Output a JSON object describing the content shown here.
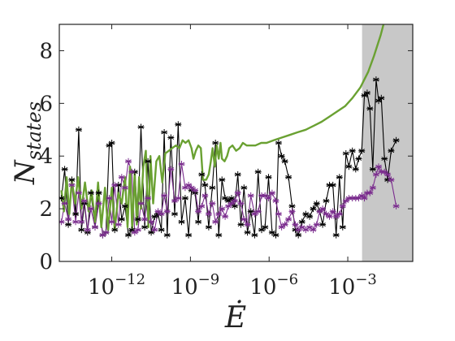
{
  "chart_data": {
    "type": "line",
    "title": "",
    "xlabel": "Ė",
    "ylabel_main": "N",
    "ylabel_sub": "states",
    "x_scale": "log",
    "xlim": [
      1e-14,
      0.3
    ],
    "ylim": [
      0,
      9
    ],
    "x_ticks": [
      {
        "value": 1e-12,
        "base": "10",
        "exp": "−12"
      },
      {
        "value": 1e-09,
        "base": "10",
        "exp": "−9"
      },
      {
        "value": 1e-06,
        "base": "10",
        "exp": "−6"
      },
      {
        "value": 0.001,
        "base": "10",
        "exp": "−3"
      }
    ],
    "y_ticks": [
      0,
      2,
      4,
      6,
      8
    ],
    "shaded_region": {
      "x_from": 0.0035,
      "x_to": 0.3,
      "color": "#c8c8c8"
    },
    "series": [
      {
        "color": "#000000",
        "marker": "asterisk",
        "points": [
          [
            1.2e-14,
            2.4
          ],
          [
            1.6e-14,
            3.5
          ],
          [
            2.2e-14,
            1.4
          ],
          [
            3e-14,
            3.1
          ],
          [
            4.2e-14,
            1.8
          ],
          [
            5.5e-14,
            5.0
          ],
          [
            7e-14,
            1.2
          ],
          [
            9e-14,
            2.2
          ],
          [
            1.2e-13,
            1.1
          ],
          [
            1.6e-13,
            2.6
          ],
          [
            2.3e-13,
            1.3
          ],
          [
            3.2e-13,
            2.6
          ],
          [
            4.5e-13,
            1.0
          ],
          [
            6e-13,
            1.1
          ],
          [
            8e-13,
            4.4
          ],
          [
            1e-12,
            4.5
          ],
          [
            1.3e-12,
            1.2
          ],
          [
            1.8e-12,
            2.9
          ],
          [
            2.4e-12,
            1.6
          ],
          [
            3.2e-12,
            2.1
          ],
          [
            4.3e-12,
            1.0
          ],
          [
            5.8e-12,
            1.2
          ],
          [
            7.5e-12,
            3.4
          ],
          [
            1e-11,
            1.6
          ],
          [
            1.3e-11,
            5.1
          ],
          [
            1.8e-11,
            1.3
          ],
          [
            2.4e-11,
            3.8
          ],
          [
            3.2e-11,
            1.1
          ],
          [
            4.3e-11,
            1.7
          ],
          [
            5.8e-11,
            1.8
          ],
          [
            7.8e-11,
            1.2
          ],
          [
            1e-10,
            4.9
          ],
          [
            1.3e-10,
            1.0
          ],
          [
            1.8e-10,
            4.7
          ],
          [
            2.5e-10,
            1.8
          ],
          [
            3.4e-10,
            5.2
          ],
          [
            4.6e-10,
            1.5
          ],
          [
            6.3e-10,
            2.4
          ],
          [
            8.5e-10,
            1.0
          ],
          [
            1.1e-09,
            2.7
          ],
          [
            1.5e-09,
            2.6
          ],
          [
            2e-09,
            1.5
          ],
          [
            2.7e-09,
            3.3
          ],
          [
            3.6e-09,
            2.9
          ],
          [
            5e-09,
            1.3
          ],
          [
            6.8e-09,
            2.8
          ],
          [
            9e-09,
            4.5
          ],
          [
            1.2e-08,
            1.0
          ],
          [
            1.6e-08,
            3.1
          ],
          [
            2.1e-08,
            2.4
          ],
          [
            2.8e-08,
            2.3
          ],
          [
            3.7e-08,
            2.4
          ],
          [
            4.9e-08,
            2.1
          ],
          [
            6.4e-08,
            3.3
          ],
          [
            8.4e-08,
            1.4
          ],
          [
            1.1e-07,
            2.8
          ],
          [
            1.5e-07,
            1.1
          ],
          [
            2e-07,
            1.9
          ],
          [
            2.8e-07,
            1.0
          ],
          [
            3.8e-07,
            3.4
          ],
          [
            5.2e-07,
            1.2
          ],
          [
            7e-07,
            1.3
          ],
          [
            9.5e-07,
            3.2
          ],
          [
            1.3e-06,
            1.1
          ],
          [
            1.8e-06,
            1.0
          ],
          [
            2.3e-06,
            4.5
          ],
          [
            3e-06,
            4.0
          ],
          [
            4e-06,
            3.8
          ],
          [
            5.5e-06,
            3.2
          ],
          [
            7.5e-06,
            2.1
          ],
          [
            1e-05,
            1.2
          ],
          [
            1.3e-05,
            1.0
          ],
          [
            1.8e-05,
            1.5
          ],
          [
            2.5e-05,
            1.8
          ],
          [
            3.5e-05,
            1.7
          ],
          [
            4.8e-05,
            2.0
          ],
          [
            6.5e-05,
            2.2
          ],
          [
            8.5e-05,
            1.9
          ],
          [
            0.00011,
            1.4
          ],
          [
            0.00015,
            2.3
          ],
          [
            0.0002,
            2.9
          ],
          [
            0.00027,
            2.9
          ],
          [
            0.00036,
            1.0
          ],
          [
            0.00048,
            3.2
          ],
          [
            0.00064,
            1.3
          ],
          [
            0.00085,
            4.1
          ],
          [
            0.0011,
            3.6
          ],
          [
            0.0015,
            4.2
          ],
          [
            0.002,
            3.5
          ],
          [
            0.0026,
            3.9
          ],
          [
            0.0034,
            4.2
          ],
          [
            0.0043,
            6.3
          ],
          [
            0.0055,
            6.4
          ],
          [
            0.007,
            5.8
          ],
          [
            0.009,
            3.5
          ],
          [
            0.012,
            6.9
          ],
          [
            0.015,
            6.1
          ],
          [
            0.019,
            6.2
          ],
          [
            0.025,
            3.9
          ],
          [
            0.033,
            3.1
          ],
          [
            0.045,
            4.2
          ],
          [
            0.07,
            4.6
          ]
        ]
      },
      {
        "color": "#7b2d8e",
        "marker": "asterisk",
        "points": [
          [
            1.2e-14,
            1.5
          ],
          [
            1.6e-14,
            2.2
          ],
          [
            2.2e-14,
            1.6
          ],
          [
            3e-14,
            2.9
          ],
          [
            4.2e-14,
            1.5
          ],
          [
            5.5e-14,
            2.6
          ],
          [
            7e-14,
            1.5
          ],
          [
            9e-14,
            2.3
          ],
          [
            1.2e-13,
            1.2
          ],
          [
            1.6e-13,
            2.0
          ],
          [
            2.3e-13,
            1.3
          ],
          [
            3.2e-13,
            2.2
          ],
          [
            4.5e-13,
            1.0
          ],
          [
            6e-13,
            1.1
          ],
          [
            8e-13,
            2.4
          ],
          [
            1e-12,
            1.5
          ],
          [
            1.3e-12,
            2.9
          ],
          [
            1.8e-12,
            1.4
          ],
          [
            2.4e-12,
            3.2
          ],
          [
            3.2e-12,
            2.8
          ],
          [
            4.3e-12,
            3.8
          ],
          [
            5.8e-12,
            3.4
          ],
          [
            7.5e-12,
            1.1
          ],
          [
            1e-11,
            1.2
          ],
          [
            1.3e-11,
            2.2
          ],
          [
            1.8e-11,
            1.6
          ],
          [
            2.4e-11,
            2.4
          ],
          [
            3.2e-11,
            1.5
          ],
          [
            4.3e-11,
            1.2
          ],
          [
            5.8e-11,
            1.9
          ],
          [
            7.8e-11,
            1.8
          ],
          [
            1e-10,
            2.5
          ],
          [
            1.3e-10,
            1.9
          ],
          [
            1.8e-10,
            3.5
          ],
          [
            2.5e-10,
            2.3
          ],
          [
            3.4e-10,
            2.4
          ],
          [
            4.6e-10,
            3.7
          ],
          [
            6.3e-10,
            2.8
          ],
          [
            8.5e-10,
            2.9
          ],
          [
            1.1e-09,
            2.8
          ],
          [
            1.5e-09,
            2.7
          ],
          [
            2e-09,
            1.9
          ],
          [
            2.7e-09,
            2.1
          ],
          [
            3.6e-09,
            2.5
          ],
          [
            5e-09,
            1.8
          ],
          [
            6.8e-09,
            2.2
          ],
          [
            9e-09,
            1.5
          ],
          [
            1.2e-08,
            1.8
          ],
          [
            1.6e-08,
            2.0
          ],
          [
            2.1e-08,
            1.7
          ],
          [
            2.8e-08,
            2.1
          ],
          [
            3.7e-08,
            2.2
          ],
          [
            4.9e-08,
            2.3
          ],
          [
            6.4e-08,
            2.6
          ],
          [
            8.4e-08,
            2.2
          ],
          [
            1.1e-07,
            1.6
          ],
          [
            1.5e-07,
            1.4
          ],
          [
            2e-07,
            2.5
          ],
          [
            2.8e-07,
            1.8
          ],
          [
            3.8e-07,
            1.9
          ],
          [
            5.2e-07,
            2.5
          ],
          [
            7e-07,
            2.5
          ],
          [
            9.5e-07,
            2.4
          ],
          [
            1.3e-06,
            2.6
          ],
          [
            1.8e-06,
            2.3
          ],
          [
            2.3e-06,
            1.8
          ],
          [
            3e-06,
            1.3
          ],
          [
            4e-06,
            1.4
          ],
          [
            5.5e-06,
            1.6
          ],
          [
            7.5e-06,
            1.9
          ],
          [
            1e-05,
            1.4
          ],
          [
            1.3e-05,
            1.2
          ],
          [
            1.8e-05,
            1.3
          ],
          [
            2.5e-05,
            1.2
          ],
          [
            3.5e-05,
            1.3
          ],
          [
            4.8e-05,
            1.2
          ],
          [
            6.5e-05,
            1.4
          ],
          [
            8.5e-05,
            1.9
          ],
          [
            0.00011,
            2.0
          ],
          [
            0.00015,
            1.8
          ],
          [
            0.0002,
            1.7
          ],
          [
            0.00027,
            1.9
          ],
          [
            0.00036,
            1.7
          ],
          [
            0.00048,
            1.8
          ],
          [
            0.00064,
            2.1
          ],
          [
            0.00085,
            2.3
          ],
          [
            0.0011,
            2.4
          ],
          [
            0.0015,
            2.4
          ],
          [
            0.002,
            2.4
          ],
          [
            0.0026,
            2.4
          ],
          [
            0.0034,
            2.5
          ],
          [
            0.0043,
            2.4
          ],
          [
            0.0055,
            2.6
          ],
          [
            0.007,
            2.6
          ],
          [
            0.009,
            2.8
          ],
          [
            0.012,
            3.3
          ],
          [
            0.015,
            3.6
          ],
          [
            0.019,
            3.4
          ],
          [
            0.025,
            3.4
          ],
          [
            0.033,
            3.3
          ],
          [
            0.045,
            3.1
          ],
          [
            0.07,
            2.1
          ]
        ]
      },
      {
        "color": "#6aa132",
        "marker": "none",
        "points": [
          [
            1.2e-14,
            2.7
          ],
          [
            1.5e-14,
            1.9
          ],
          [
            1.9e-14,
            3.2
          ],
          [
            2.4e-14,
            1.8
          ],
          [
            3e-14,
            3.1
          ],
          [
            4e-14,
            2.2
          ],
          [
            5.2e-14,
            3.2
          ],
          [
            7e-14,
            2.0
          ],
          [
            9.5e-14,
            3.0
          ],
          [
            1.3e-13,
            1.9
          ],
          [
            1.7e-13,
            2.7
          ],
          [
            2.3e-13,
            1.5
          ],
          [
            3e-13,
            3.0
          ],
          [
            4e-13,
            1.3
          ],
          [
            5.5e-13,
            2.8
          ],
          [
            7.3e-13,
            1.2
          ],
          [
            1e-12,
            2.8
          ],
          [
            1.3e-12,
            1.2
          ],
          [
            1.8e-12,
            2.6
          ],
          [
            2.4e-12,
            2.2
          ],
          [
            3.2e-12,
            3.2
          ],
          [
            4e-12,
            1.3
          ],
          [
            5e-12,
            3.6
          ],
          [
            6e-12,
            1.2
          ],
          [
            7.5e-12,
            3.4
          ],
          [
            9e-12,
            1.4
          ],
          [
            1.1e-11,
            3.2
          ],
          [
            1.3e-11,
            2.0
          ],
          [
            1.6e-11,
            3.6
          ],
          [
            2e-11,
            4.2
          ],
          [
            2.5e-11,
            1.3
          ],
          [
            3e-11,
            4.0
          ],
          [
            3.8e-11,
            2.2
          ],
          [
            5e-11,
            3.8
          ],
          [
            6.5e-11,
            4.0
          ],
          [
            8.5e-11,
            3.0
          ],
          [
            1.1e-10,
            4.1
          ],
          [
            1.5e-10,
            4.2
          ],
          [
            2e-10,
            4.3
          ],
          [
            2.8e-10,
            4.4
          ],
          [
            3.8e-10,
            4.3
          ],
          [
            5e-10,
            4.6
          ],
          [
            6.5e-10,
            4.5
          ],
          [
            8.5e-10,
            4.6
          ],
          [
            1.1e-09,
            4.3
          ],
          [
            1.3e-09,
            3.9
          ],
          [
            1.6e-09,
            4.2
          ],
          [
            2e-09,
            4.4
          ],
          [
            2.5e-09,
            4.3
          ],
          [
            3e-09,
            3.1
          ],
          [
            4e-09,
            3.1
          ],
          [
            5e-09,
            3.3
          ],
          [
            6e-09,
            3.8
          ],
          [
            7e-09,
            4.3
          ],
          [
            8.5e-09,
            3.6
          ],
          [
            1e-08,
            4.4
          ],
          [
            1.2e-08,
            3.9
          ],
          [
            1.4e-08,
            4.5
          ],
          [
            1.6e-08,
            3.9
          ],
          [
            2e-08,
            3.8
          ],
          [
            2.5e-08,
            4.0
          ],
          [
            3e-08,
            4.3
          ],
          [
            4e-08,
            4.4
          ],
          [
            5.5e-08,
            4.2
          ],
          [
            7.5e-08,
            4.3
          ],
          [
            1e-07,
            4.5
          ],
          [
            1.4e-07,
            4.4
          ],
          [
            2e-07,
            4.4
          ],
          [
            3e-07,
            4.4
          ],
          [
            5e-07,
            4.5
          ],
          [
            8e-07,
            4.5
          ],
          [
            1.5e-06,
            4.6
          ],
          [
            3e-06,
            4.7
          ],
          [
            6e-06,
            4.8
          ],
          [
            1.2e-05,
            4.9
          ],
          [
            2.5e-05,
            5.0
          ],
          [
            5e-05,
            5.15
          ],
          [
            0.0001,
            5.3
          ],
          [
            0.0002,
            5.5
          ],
          [
            0.0004,
            5.7
          ],
          [
            0.0008,
            5.9
          ],
          [
            0.0015,
            6.2
          ],
          [
            0.003,
            6.6
          ],
          [
            0.006,
            7.2
          ],
          [
            0.01,
            7.8
          ],
          [
            0.018,
            8.6
          ],
          [
            0.026,
            9.2
          ]
        ]
      }
    ]
  }
}
